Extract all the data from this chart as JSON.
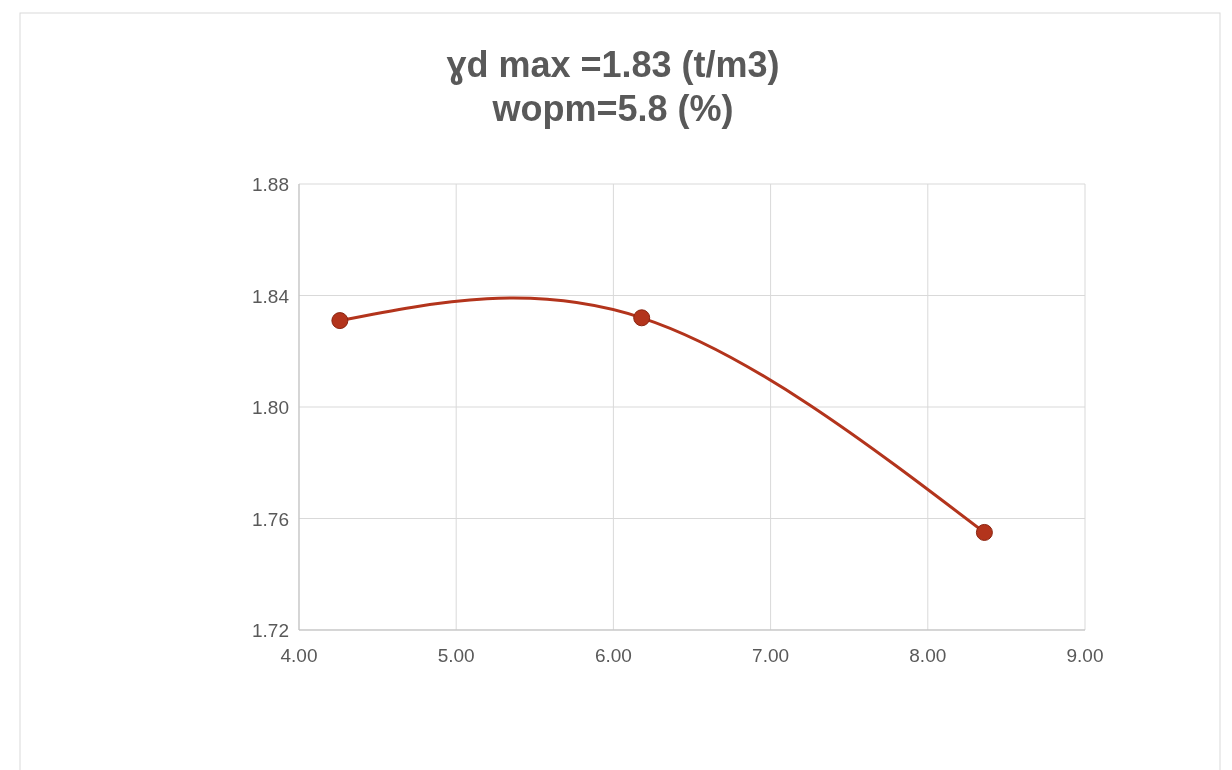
{
  "chart_data": {
    "type": "line",
    "title": "ɣd max =1.83 (t/m3)\nwopm=5.8 (%)",
    "x": [
      4.26,
      6.18,
      8.36
    ],
    "series": [
      {
        "color": "#b3341c",
        "values": [
          1.831,
          1.832,
          1.755
        ]
      }
    ],
    "xlim": [
      4,
      9
    ],
    "xticks": [
      {
        "value": 4,
        "label": "4.00"
      },
      {
        "value": 5,
        "label": "5.00"
      },
      {
        "value": 6,
        "label": "6.00"
      },
      {
        "value": 7,
        "label": "7.00"
      },
      {
        "value": 8,
        "label": "8.00"
      },
      {
        "value": 9,
        "label": "9.00"
      }
    ],
    "ylim": [
      1.72,
      1.88
    ],
    "yticks": [
      {
        "value": 1.72,
        "label": "1.72"
      },
      {
        "value": 1.76,
        "label": "1.76"
      },
      {
        "value": 1.8,
        "label": "1.80"
      },
      {
        "value": 1.84,
        "label": "1.84"
      },
      {
        "value": 1.88,
        "label": "1.88"
      }
    ],
    "grid": true,
    "marker": "circle"
  }
}
